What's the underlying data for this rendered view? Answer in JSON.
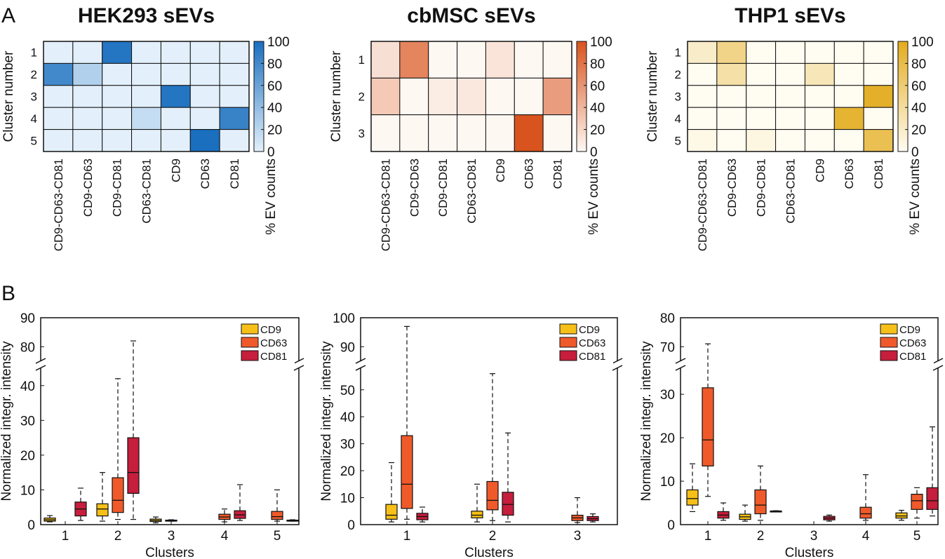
{
  "panels": {
    "A": "A",
    "B": "B"
  },
  "chart_data": [
    {
      "type": "heatmap",
      "title": "HEK293 sEVs",
      "ylabel": "Cluster number",
      "colorbar_label": "% EV counts",
      "colorbar_ticks": [
        "0",
        "20",
        "40",
        "60",
        "80",
        "100"
      ],
      "color": "#1a6fbf",
      "low_color": "#e3f0fb",
      "x_categories": [
        "CD9-CD63-CD81",
        "CD9-CD63",
        "CD9-CD81",
        "CD63-CD81",
        "CD9",
        "CD63",
        "CD81"
      ],
      "y_categories": [
        "1",
        "2",
        "3",
        "4",
        "5"
      ],
      "values": [
        [
          0,
          0,
          95,
          0,
          0,
          0,
          0
        ],
        [
          80,
          25,
          0,
          0,
          0,
          0,
          0
        ],
        [
          0,
          0,
          0,
          0,
          95,
          0,
          0
        ],
        [
          0,
          0,
          0,
          15,
          0,
          0,
          85
        ],
        [
          0,
          0,
          0,
          0,
          0,
          100,
          0
        ]
      ],
      "range": [
        0,
        100
      ]
    },
    {
      "type": "heatmap",
      "title": "cbMSC sEVs",
      "ylabel": "Cluster number",
      "colorbar_label": "% EV counts",
      "colorbar_ticks": [
        "0",
        "20",
        "40",
        "60",
        "80",
        "100"
      ],
      "color": "#d9531e",
      "low_color": "#fef8f3",
      "x_categories": [
        "CD9-CD63-CD81",
        "CD9-CD63",
        "CD9-CD81",
        "CD63-CD81",
        "CD9",
        "CD63",
        "CD81"
      ],
      "y_categories": [
        "1",
        "2",
        "3"
      ],
      "values": [
        [
          15,
          70,
          0,
          0,
          12,
          0,
          0
        ],
        [
          28,
          0,
          7,
          10,
          0,
          0,
          55
        ],
        [
          0,
          0,
          0,
          0,
          0,
          100,
          0
        ]
      ],
      "range": [
        0,
        100
      ]
    },
    {
      "type": "heatmap",
      "title": "THP1 sEVs",
      "ylabel": "Cluster number",
      "colorbar_label": "% EV counts",
      "colorbar_ticks": [
        "0",
        "20",
        "40",
        "60",
        "80",
        "100"
      ],
      "color": "#e3ac1e",
      "low_color": "#fffcf2",
      "x_categories": [
        "CD9-CD63-CD81",
        "CD9-CD63",
        "CD9-CD81",
        "CD63-CD81",
        "CD9",
        "CD63",
        "CD81"
      ],
      "y_categories": [
        "1",
        "2",
        "3",
        "4",
        "5"
      ],
      "values": [
        [
          20,
          50,
          0,
          0,
          0,
          0,
          0
        ],
        [
          0,
          35,
          0,
          0,
          28,
          0,
          0
        ],
        [
          0,
          0,
          0,
          0,
          0,
          0,
          95
        ],
        [
          0,
          0,
          0,
          0,
          0,
          90,
          0
        ],
        [
          5,
          0,
          8,
          0,
          0,
          0,
          75
        ]
      ],
      "range": [
        0,
        100
      ]
    },
    {
      "type": "box",
      "title": "",
      "xlabel": "Clusters",
      "ylabel": "Normalized integr. intensity",
      "categories": [
        "1",
        "2",
        "3",
        "4",
        "5"
      ],
      "lower_ylim": [
        0,
        45
      ],
      "lower_ticks": [
        0,
        10,
        20,
        30,
        40
      ],
      "upper_ylim": [
        75,
        90
      ],
      "upper_ticks": [
        80,
        90
      ],
      "legend": "top-right",
      "series": [
        {
          "name": "CD9",
          "color": "#f7c018",
          "boxes": [
            {
              "min": 0.8,
              "q1": 1.0,
              "median": 1.4,
              "q3": 1.9,
              "max": 2.6
            },
            {
              "min": 1.0,
              "q1": 2.5,
              "median": 4.5,
              "q3": 6.0,
              "max": 15.0
            },
            {
              "min": 0.5,
              "q1": 0.9,
              "median": 1.2,
              "q3": 1.6,
              "max": 2.2
            },
            null,
            null
          ]
        },
        {
          "name": "CD63",
          "color": "#f05a2a",
          "boxes": [
            null,
            {
              "min": 1.5,
              "q1": 3.5,
              "median": 7.0,
              "q3": 13.5,
              "max": 42.0
            },
            {
              "min": 1.0,
              "q1": 1.1,
              "median": 1.2,
              "q3": 1.3,
              "max": 1.4
            },
            {
              "min": 0.8,
              "q1": 1.5,
              "median": 2.2,
              "q3": 3.0,
              "max": 4.5
            },
            {
              "min": 1.0,
              "q1": 1.5,
              "median": 2.3,
              "q3": 3.8,
              "max": 10.0
            }
          ]
        },
        {
          "name": "CD81",
          "color": "#c61e3c",
          "boxes": [
            {
              "min": 1.2,
              "q1": 2.5,
              "median": 4.5,
              "q3": 6.5,
              "max": 10.5
            },
            {
              "min": 1.5,
              "q1": 9.0,
              "median": 15.0,
              "q3": 25.0,
              "max": 82.0
            },
            null,
            {
              "min": 1.2,
              "q1": 1.8,
              "median": 2.8,
              "q3": 4.0,
              "max": 11.5
            },
            {
              "min": 1.0,
              "q1": 1.1,
              "median": 1.2,
              "q3": 1.3,
              "max": 1.4
            }
          ]
        }
      ]
    },
    {
      "type": "box",
      "title": "",
      "xlabel": "Clusters",
      "ylabel": "Normalized integr. intensity",
      "categories": [
        "1",
        "2",
        "3"
      ],
      "lower_ylim": [
        0,
        58
      ],
      "lower_ticks": [
        0,
        10,
        20,
        30,
        40,
        50
      ],
      "upper_ylim": [
        85,
        100
      ],
      "upper_ticks": [
        90,
        100
      ],
      "legend": "top-right",
      "series": [
        {
          "name": "CD9",
          "color": "#f7c018",
          "boxes": [
            {
              "min": 1.0,
              "q1": 2.0,
              "median": 3.5,
              "q3": 7.5,
              "max": 23.0
            },
            {
              "min": 1.0,
              "q1": 2.5,
              "median": 3.5,
              "q3": 5.0,
              "max": 15.0
            },
            null
          ]
        },
        {
          "name": "CD63",
          "color": "#f05a2a",
          "boxes": [
            {
              "min": 2.0,
              "q1": 6.0,
              "median": 15.0,
              "q3": 33.0,
              "max": 97.0
            },
            {
              "min": 1.5,
              "q1": 5.5,
              "median": 9.0,
              "q3": 16.0,
              "max": 56.0
            },
            {
              "min": 0.8,
              "q1": 1.5,
              "median": 2.5,
              "q3": 3.5,
              "max": 10.0
            }
          ]
        },
        {
          "name": "CD81",
          "color": "#c61e3c",
          "boxes": [
            {
              "min": 1.0,
              "q1": 1.8,
              "median": 3.0,
              "q3": 4.2,
              "max": 6.5
            },
            {
              "min": 1.0,
              "q1": 3.5,
              "median": 7.5,
              "q3": 12.0,
              "max": 34.0
            },
            {
              "min": 1.0,
              "q1": 1.5,
              "median": 2.2,
              "q3": 3.0,
              "max": 4.0
            }
          ]
        }
      ]
    },
    {
      "type": "box",
      "title": "",
      "xlabel": "Clusters",
      "ylabel": "Normalized integr. intensity",
      "categories": [
        "1",
        "2",
        "3",
        "4",
        "5"
      ],
      "lower_ylim": [
        0,
        36
      ],
      "lower_ticks": [
        0,
        10,
        20,
        30
      ],
      "upper_ylim": [
        65,
        80
      ],
      "upper_ticks": [
        70,
        80
      ],
      "legend": "top-right",
      "series": [
        {
          "name": "CD9",
          "color": "#f7c018",
          "boxes": [
            {
              "min": 3.0,
              "q1": 4.5,
              "median": 6.0,
              "q3": 8.0,
              "max": 14.0
            },
            {
              "min": 0.8,
              "q1": 1.2,
              "median": 1.8,
              "q3": 2.4,
              "max": 4.5
            },
            null,
            null,
            {
              "min": 1.0,
              "q1": 1.5,
              "median": 2.0,
              "q3": 2.7,
              "max": 3.3
            }
          ]
        },
        {
          "name": "CD63",
          "color": "#f05a2a",
          "boxes": [
            {
              "min": 6.5,
              "q1": 13.5,
              "median": 19.5,
              "q3": 31.5,
              "max": 71.0
            },
            {
              "min": 1.0,
              "q1": 2.5,
              "median": 4.5,
              "q3": 8.0,
              "max": 13.5
            },
            null,
            {
              "min": 1.0,
              "q1": 1.5,
              "median": 2.5,
              "q3": 4.0,
              "max": 11.5
            },
            {
              "min": 1.5,
              "q1": 3.5,
              "median": 5.5,
              "q3": 7.0,
              "max": 8.5
            }
          ]
        },
        {
          "name": "CD81",
          "color": "#c61e3c",
          "boxes": [
            {
              "min": 1.0,
              "q1": 1.5,
              "median": 2.2,
              "q3": 3.0,
              "max": 5.0
            },
            {
              "min": 3.0,
              "q1": 3.05,
              "median": 3.1,
              "q3": 3.15,
              "max": 3.2
            },
            {
              "min": 0.8,
              "q1": 1.1,
              "median": 1.5,
              "q3": 1.9,
              "max": 2.2
            },
            null,
            {
              "min": 2.0,
              "q1": 3.5,
              "median": 5.5,
              "q3": 8.5,
              "max": 22.5
            }
          ]
        }
      ]
    }
  ]
}
